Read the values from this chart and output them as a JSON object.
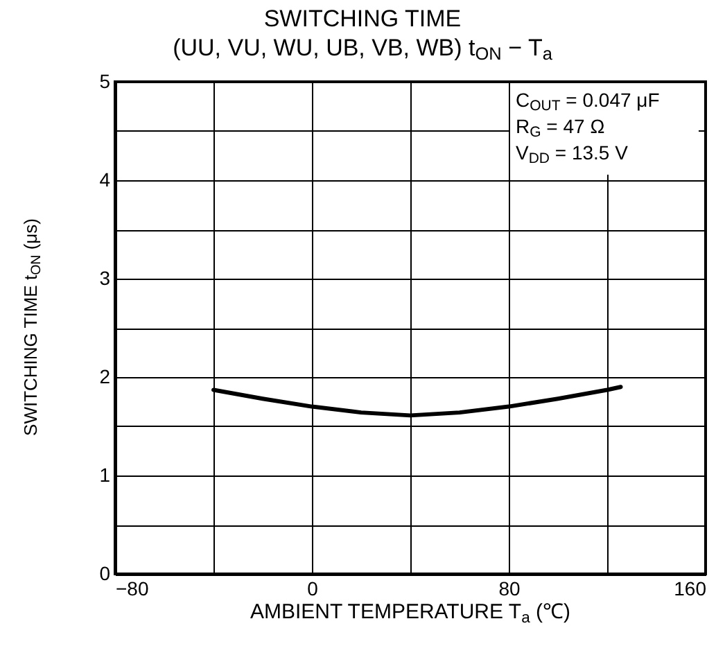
{
  "chart_data": {
    "type": "line",
    "title": "SWITCHING TIME",
    "subtitle": "(UU, VU, WU, UB, VB, WB)  t$_{ON}$ − T$_{a}$",
    "xlabel": "AMBIENT TEMPERATURE   T$_{a}$   (℃)",
    "ylabel": "SWITCHING TIME   t$_{ON}$   (μs)",
    "annotations": [
      "C$_{OUT}$ = 0.047 μF",
      "R$_{G}$ = 47 Ω",
      "V$_{DD}$ = 13.5 V"
    ],
    "x": [
      -40,
      -20,
      0,
      20,
      40,
      60,
      80,
      100,
      120,
      125.5
    ],
    "series": [
      {
        "color": "#000000",
        "values": [
          1.87,
          1.78,
          1.7,
          1.64,
          1.61,
          1.64,
          1.7,
          1.78,
          1.87,
          1.9
        ]
      }
    ],
    "xlim": [
      -80,
      160
    ],
    "ylim": [
      0,
      5
    ],
    "xticks": [
      {
        "value": -80,
        "label": "−80"
      },
      {
        "value": -40,
        "label": null
      },
      0,
      {
        "value": 40,
        "label": null
      },
      80,
      {
        "value": 120,
        "label": null
      },
      160
    ],
    "yticks": [
      0,
      {
        "value": 0.5,
        "label": null
      },
      1,
      {
        "value": 1.5,
        "label": null
      },
      2,
      {
        "value": 2.5,
        "label": null
      },
      3,
      {
        "value": 3.5,
        "label": null
      },
      4,
      {
        "value": 4.5,
        "label": null
      },
      5
    ],
    "grid": true
  }
}
